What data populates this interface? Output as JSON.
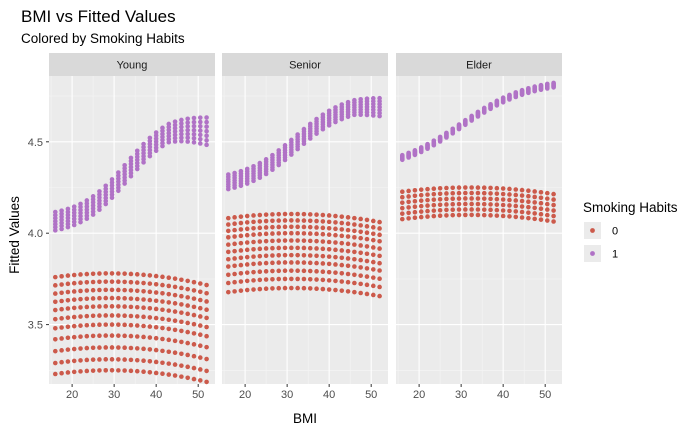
{
  "chart_data": {
    "type": "scatter",
    "title": "BMI vs Fitted Values",
    "subtitle": "Colored by Smoking Habits",
    "xlabel": "BMI",
    "ylabel": "Fitted Values",
    "xlim": [
      14.5,
      54
    ],
    "ylim": [
      3.175,
      4.86
    ],
    "x_ticks": [
      20,
      30,
      40,
      50
    ],
    "y_ticks": [
      3.5,
      4.0,
      4.5
    ],
    "y_tick_labels": [
      "3.5",
      "4.0",
      "4.5"
    ],
    "grid": true,
    "legend": {
      "title": "Smoking Habits",
      "placement": "right",
      "entries": [
        {
          "label": "0",
          "color": "#CC5A4B"
        },
        {
          "label": "1",
          "color": "#B072C6"
        }
      ]
    },
    "colors": {
      "panel_background": "#EBEBEB",
      "grid_major": "#FFFFFF",
      "strip_background": "#D9D9D9",
      "smoker_0": "#CC5A4B",
      "smoker_1": "#B072C6"
    },
    "x_points": [
      16,
      17.5,
      19,
      20.5,
      22,
      23.5,
      25,
      26.5,
      28,
      29.5,
      31,
      32.5,
      34,
      35.5,
      37,
      38.5,
      40,
      41.5,
      43,
      44.5,
      46,
      47.5,
      49,
      50.5,
      52
    ],
    "facets": [
      {
        "name": "Young",
        "series": [
          {
            "smoking": "0",
            "peak_x": 29,
            "curvature": 0.00012,
            "bands": [
              3.25,
              3.31,
              3.375,
              3.44,
              3.5,
              3.55,
              3.6,
              3.645,
              3.69,
              3.735,
              3.78
            ]
          },
          {
            "smoking": "1",
            "kind": "logistic",
            "low": 4.04,
            "high": 4.63,
            "mid": 33,
            "scale": 5.5,
            "drop_after": 43,
            "drop_rate": 0.006,
            "drop_spread": 0.022,
            "spread": 0.1
          }
        ]
      },
      {
        "name": "Senior",
        "series": [
          {
            "smoking": "0",
            "peak_x": 31,
            "curvature": 0.0001,
            "bands": [
              3.7,
              3.75,
              3.795,
              3.84,
              3.88,
              3.92,
              3.96,
              4.0,
              4.035,
              4.07,
              4.105
            ]
          },
          {
            "smoking": "1",
            "kind": "logistic",
            "low": 4.25,
            "high": 4.73,
            "mid": 32,
            "scale": 6,
            "drop_after": 46,
            "drop_rate": 0.004,
            "drop_spread": 0.012,
            "spread": 0.08
          }
        ]
      },
      {
        "name": "Elder",
        "series": [
          {
            "smoking": "0",
            "peak_x": 32,
            "curvature": 9e-05,
            "bands": [
              4.1,
              4.13,
              4.16,
              4.19,
              4.22,
              4.25
            ]
          },
          {
            "smoking": "1",
            "kind": "logistic",
            "low": 4.34,
            "high": 4.84,
            "mid": 30,
            "scale": 8,
            "drop_after": 60,
            "drop_rate": 0,
            "drop_spread": 0,
            "spread": 0.025
          }
        ]
      }
    ]
  }
}
